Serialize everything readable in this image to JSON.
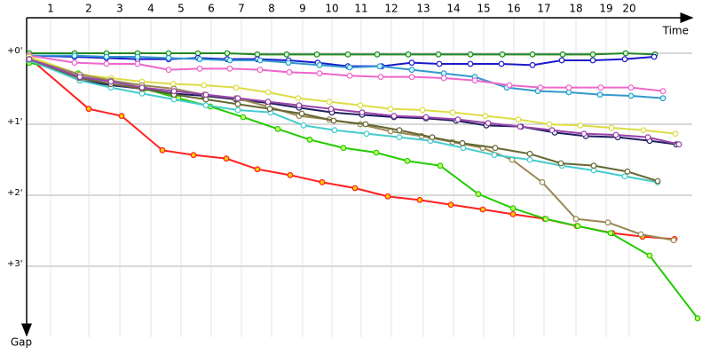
{
  "chart_data": {
    "type": "line",
    "x_label": "Time",
    "y_label": "Gap",
    "xlim": [
      0,
      750
    ],
    "ylim": [
      0,
      240
    ],
    "xticks": [
      {
        "value": 27,
        "label": "1"
      },
      {
        "value": 70,
        "label": "2"
      },
      {
        "value": 105,
        "label": "3"
      },
      {
        "value": 140,
        "label": "4"
      },
      {
        "value": 174,
        "label": "5"
      },
      {
        "value": 208,
        "label": "6"
      },
      {
        "value": 242,
        "label": "7"
      },
      {
        "value": 276,
        "label": "8"
      },
      {
        "value": 311,
        "label": "9"
      },
      {
        "value": 344,
        "label": "10"
      },
      {
        "value": 377,
        "label": "11"
      },
      {
        "value": 411,
        "label": "12"
      },
      {
        "value": 447,
        "label": "13"
      },
      {
        "value": 481,
        "label": "14"
      },
      {
        "value": 515,
        "label": "15"
      },
      {
        "value": 549,
        "label": "16"
      },
      {
        "value": 583,
        "label": "17"
      },
      {
        "value": 619,
        "label": "18"
      },
      {
        "value": 653,
        "label": "19"
      },
      {
        "value": 679,
        "label": "20"
      }
    ],
    "yticks": [
      {
        "value": 0,
        "label": "+0'"
      },
      {
        "value": 60,
        "label": "+1'"
      },
      {
        "value": 120,
        "label": "+2'"
      },
      {
        "value": 180,
        "label": "+3'"
      }
    ],
    "grid": true,
    "series": [
      {
        "color": "#ff2020",
        "marker_fill": "#ffcc00",
        "x": [
          3,
          70,
          107,
          153,
          188,
          225,
          260,
          297,
          333,
          370,
          407,
          443,
          478,
          514,
          548,
          584,
          620,
          660,
          694,
          730
        ],
        "values": [
          4,
          47,
          53,
          82,
          86,
          89,
          98,
          103,
          109,
          114,
          121,
          124,
          128,
          132,
          136,
          140,
          146,
          152,
          155,
          157
        ]
      },
      {
        "color": "#22cc00",
        "marker_fill": "#ccff66",
        "x": [
          3,
          58,
          95,
          133,
          171,
          207,
          244,
          283,
          319,
          357,
          394,
          429,
          466,
          509,
          548,
          585,
          621,
          658,
          702,
          756
        ],
        "values": [
          8,
          17,
          23,
          30,
          38,
          45,
          54,
          64,
          73,
          80,
          84,
          91,
          95,
          119,
          131,
          140,
          146,
          152,
          171,
          224
        ]
      },
      {
        "color": "#228822",
        "marker_fill": "#ccffcc",
        "x": [
          3,
          54,
          90,
          125,
          160,
          193,
          226,
          260,
          293,
          327,
          362,
          395,
          430,
          464,
          500,
          536,
          570,
          604,
          638,
          675,
          708
        ],
        "values": [
          0,
          0,
          0,
          0,
          0,
          0,
          0,
          1,
          1,
          1,
          1,
          1,
          1,
          1,
          1,
          1,
          1,
          1,
          1,
          0,
          1
        ]
      },
      {
        "color": "#1a1acc",
        "marker_fill": "#ffffff",
        "x": [
          3,
          54,
          90,
          125,
          160,
          193,
          226,
          260,
          295,
          328,
          362,
          400,
          434,
          465,
          500,
          535,
          570,
          603,
          638,
          674,
          707
        ],
        "values": [
          2,
          3,
          4,
          5,
          5,
          4,
          5,
          5,
          6,
          8,
          11,
          11,
          8,
          9,
          9,
          9,
          10,
          6,
          6,
          5,
          3
        ]
      },
      {
        "color": "#3399cc",
        "marker_fill": "#ccffff",
        "x": [
          3,
          54,
          90,
          125,
          160,
          195,
          229,
          263,
          295,
          330,
          364,
          398,
          434,
          470,
          505,
          541,
          576,
          611,
          646,
          681,
          717
        ],
        "values": [
          2,
          2,
          3,
          3,
          4,
          5,
          6,
          6,
          8,
          10,
          12,
          11,
          14,
          17,
          20,
          29,
          32,
          33,
          35,
          36,
          38
        ]
      },
      {
        "color": "#ee66cc",
        "marker_fill": "#ffffff",
        "x": [
          3,
          54,
          90,
          125,
          160,
          195,
          229,
          263,
          296,
          330,
          364,
          399,
          434,
          470,
          505,
          544,
          579,
          611,
          647,
          681,
          717
        ],
        "values": [
          2,
          8,
          9,
          9,
          14,
          13,
          13,
          14,
          16,
          17,
          19,
          20,
          20,
          21,
          23,
          27,
          29,
          29,
          29,
          29,
          32
        ]
      },
      {
        "color": "#dddd44",
        "marker_fill": "#ffffff",
        "x": [
          3,
          60,
          95,
          130,
          165,
          200,
          236,
          272,
          306,
          341,
          376,
          410,
          446,
          480,
          517,
          554,
          589,
          624,
          659,
          695,
          731
        ],
        "values": [
          3,
          18,
          21,
          24,
          26,
          27,
          29,
          33,
          38,
          41,
          44,
          47,
          48,
          50,
          53,
          56,
          60,
          61,
          63,
          65,
          68
        ]
      },
      {
        "color": "#202060",
        "marker_fill": "#ffffff",
        "x": [
          3,
          60,
          95,
          130,
          165,
          200,
          236,
          272,
          307,
          344,
          378,
          414,
          450,
          484,
          518,
          557,
          595,
          630,
          666,
          702,
          732
        ],
        "values": [
          5,
          23,
          27,
          30,
          34,
          36,
          39,
          42,
          46,
          50,
          52,
          54,
          55,
          57,
          61,
          62,
          67,
          70,
          71,
          74,
          77
        ]
      },
      {
        "color": "#998855",
        "marker_fill": "#ffffff",
        "x": [
          3,
          60,
          95,
          130,
          166,
          200,
          236,
          272,
          307,
          341,
          376,
          410,
          445,
          480,
          514,
          547,
          581,
          619,
          655,
          692,
          729
        ],
        "values": [
          5,
          18,
          23,
          27,
          30,
          35,
          38,
          45,
          53,
          56,
          60,
          66,
          70,
          75,
          80,
          90,
          109,
          140,
          143,
          153,
          158
        ]
      },
      {
        "color": "#44cccc",
        "marker_fill": "#ffffff",
        "x": [
          3,
          60,
          95,
          130,
          166,
          202,
          238,
          275,
          312,
          347,
          383,
          420,
          455,
          492,
          527,
          567,
          603,
          639,
          674,
          711
        ],
        "values": [
          6,
          23,
          29,
          34,
          39,
          44,
          48,
          50,
          61,
          65,
          68,
          71,
          74,
          80,
          86,
          90,
          95,
          99,
          104,
          109
        ]
      },
      {
        "color": "#666633",
        "marker_fill": "#ffffff",
        "x": [
          3,
          60,
          95,
          130,
          166,
          202,
          238,
          274,
          310,
          346,
          382,
          420,
          457,
          491,
          528,
          567,
          602,
          639,
          677,
          711
        ],
        "values": [
          5,
          21,
          26,
          30,
          35,
          39,
          43,
          47,
          51,
          57,
          60,
          65,
          71,
          76,
          80,
          85,
          93,
          95,
          100,
          108
        ]
      },
      {
        "color": "#9944aa",
        "marker_fill": "#ffffff",
        "x": [
          3,
          60,
          95,
          130,
          166,
          202,
          238,
          272,
          307,
          343,
          378,
          414,
          450,
          486,
          520,
          556,
          592,
          628,
          664,
          700,
          735
        ],
        "values": [
          5,
          20,
          24,
          29,
          32,
          35,
          38,
          41,
          44,
          47,
          50,
          53,
          54,
          56,
          59,
          62,
          65,
          68,
          69,
          71,
          77
        ]
      }
    ]
  }
}
